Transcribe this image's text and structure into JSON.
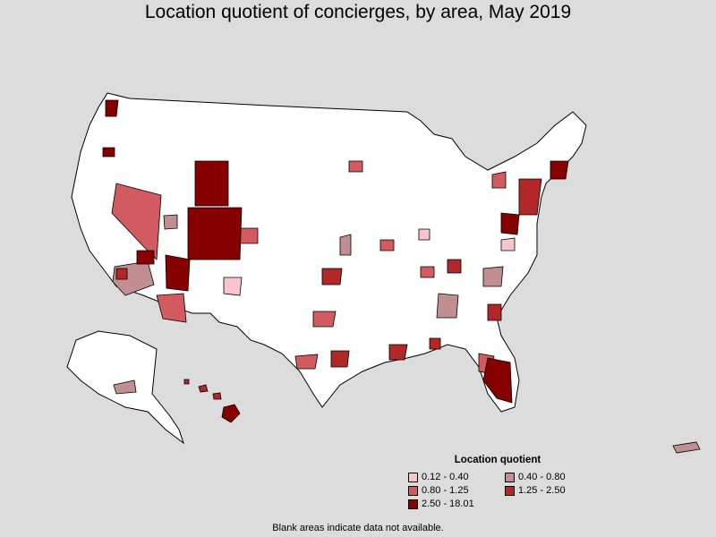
{
  "title": "Location quotient of concierges, by area, May 2019",
  "legend": {
    "title": "Location quotient",
    "items": [
      {
        "label": "0.12 - 0.40",
        "color": "#f7c5cb"
      },
      {
        "label": "0.40 - 0.80",
        "color": "#bf8f91"
      },
      {
        "label": "0.80 - 1.25",
        "color": "#d25b5f"
      },
      {
        "label": "1.25 - 2.50",
        "color": "#b22727"
      },
      {
        "label": "2.50 - 18.01",
        "color": "#870000"
      }
    ]
  },
  "footnote": "Blank areas indicate data not available.",
  "colors": {
    "background": "#dcdcdc",
    "no_data": "#ffffff",
    "border": "#000000"
  }
}
